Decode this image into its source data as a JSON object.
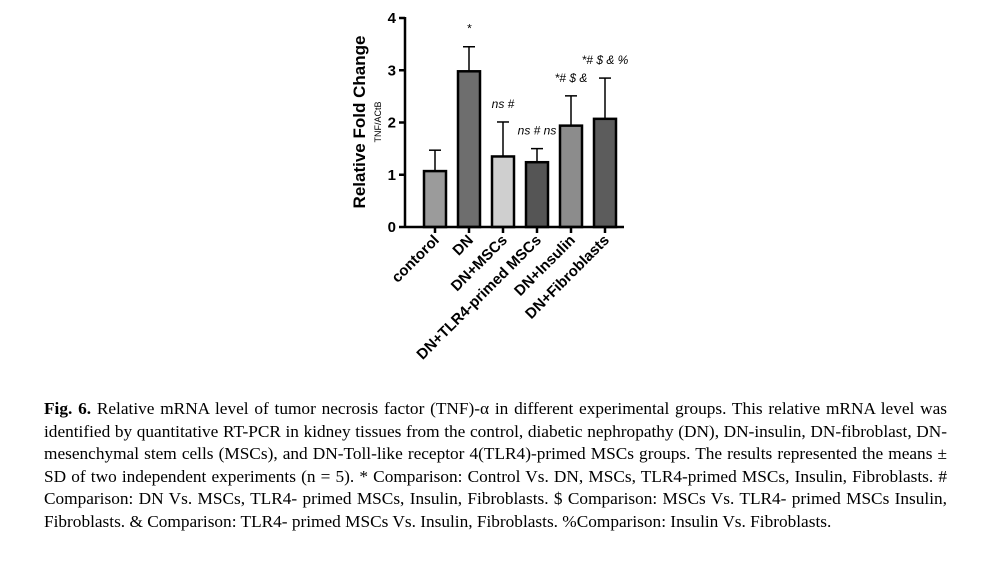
{
  "chart_data": {
    "type": "bar",
    "title": "",
    "ylabel": "Relative Fold Change",
    "ylabel_sub": "TNF/ACtB",
    "xlabel": "",
    "ylim": [
      0,
      4
    ],
    "yticks": [
      "0",
      "1",
      "2",
      "3",
      "4"
    ],
    "categories": [
      "contorol",
      "DN",
      "DN+MSCs",
      "DN+TLR4-primed MSCs",
      "DN+Insulin",
      "DN+Fibroblasts"
    ],
    "values": [
      1.07,
      2.98,
      1.35,
      1.24,
      1.94,
      2.07
    ],
    "error_plus": [
      0.4,
      0.47,
      0.66,
      0.26,
      0.57,
      0.78
    ],
    "annotations": [
      "",
      "*",
      "ns #",
      "ns # ns",
      "*# $ &",
      "*# $ & %"
    ],
    "colors": [
      "#9b9b9b",
      "#6e6e6e",
      "#cfcfcf",
      "#555555",
      "#8c8c8c",
      "#5c5c5c"
    ],
    "grid": false
  },
  "caption": {
    "label": "Fig. 6.",
    "text": " Relative mRNA level of tumor necrosis factor (TNF)-α in different experimental groups. This relative mRNA level was identified by quantitative RT-PCR in kidney tissues from the control, diabetic nephropathy (DN), DN-insulin, DN-fibroblast, DN- mesenchymal stem cells (MSCs), and DN-Toll-like receptor 4(TLR4)-primed MSCs groups. The results represented the means ± SD of two independent experiments (n = 5). * Comparison: Control Vs. DN, MSCs, TLR4-primed MSCs, Insulin, Fibroblasts. # Comparison: DN Vs. MSCs, TLR4- primed MSCs, Insulin, Fibroblasts. $ Comparison: MSCs Vs. TLR4- primed MSCs Insulin, Fibroblasts. & Comparison: TLR4- primed MSCs Vs. Insulin, Fibroblasts. %Comparison: Insulin Vs. Fibroblasts."
  }
}
